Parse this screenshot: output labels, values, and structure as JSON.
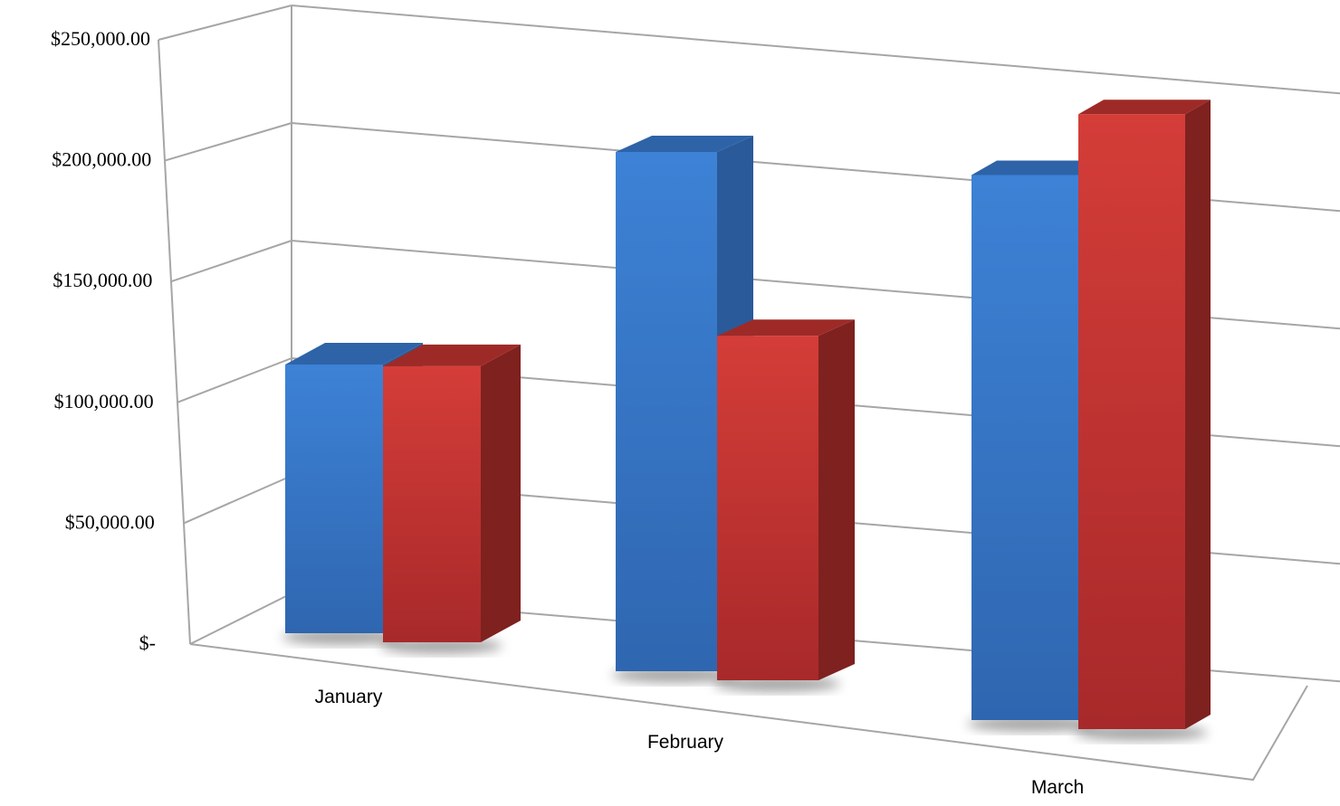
{
  "chart_data": {
    "type": "bar",
    "style": "3d-clustered-column",
    "categories": [
      "January",
      "February",
      "March"
    ],
    "series": [
      {
        "color": "#3b7dd0",
        "values": [
          110000,
          205000,
          195000
        ]
      },
      {
        "color": "#d23a36",
        "values": [
          113000,
          136000,
          220000
        ]
      }
    ],
    "y_tick_labels": [
      "$-",
      "$50,000.00",
      "$100,000.00",
      "$150,000.00",
      "$200,000.00",
      "$250,000.00"
    ],
    "y_tick_values": [
      0,
      50000,
      100000,
      150000,
      200000,
      250000
    ],
    "ylim": [
      0,
      250000
    ],
    "grid": true,
    "legend": "none"
  }
}
